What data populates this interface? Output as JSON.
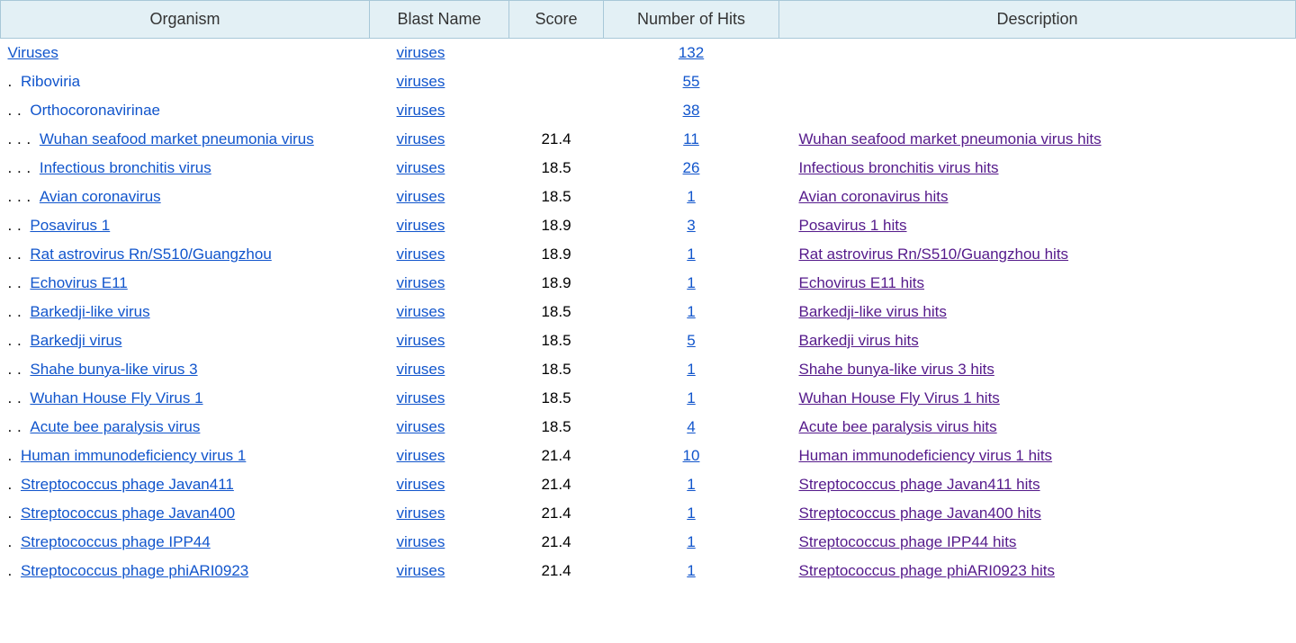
{
  "columns": {
    "organism": "Organism",
    "blast": "Blast Name",
    "score": "Score",
    "hits": "Number of Hits",
    "desc": "Description"
  },
  "colors": {
    "header_bg": "#e3f0f5",
    "border": "#a8c8d8",
    "link_blue": "#1155cc",
    "link_purple": "#551a8b"
  },
  "rows": [
    {
      "indent": 0,
      "organism": "Viruses",
      "org_is_link": true,
      "blast": "viruses",
      "score": "",
      "hits": "132",
      "desc": ""
    },
    {
      "indent": 1,
      "organism": "Riboviria",
      "org_is_link": false,
      "blast": "viruses",
      "score": "",
      "hits": "55",
      "desc": ""
    },
    {
      "indent": 2,
      "organism": "Orthocoronavirinae",
      "org_is_link": false,
      "blast": "viruses",
      "score": "",
      "hits": "38",
      "desc": ""
    },
    {
      "indent": 3,
      "organism": "Wuhan seafood market pneumonia virus",
      "org_is_link": true,
      "blast": "viruses",
      "score": "21.4",
      "hits": "11",
      "desc": "Wuhan seafood market pneumonia virus hits"
    },
    {
      "indent": 3,
      "organism": "Infectious bronchitis virus",
      "org_is_link": true,
      "blast": "viruses",
      "score": "18.5",
      "hits": "26",
      "desc": "Infectious bronchitis virus hits"
    },
    {
      "indent": 3,
      "organism": "Avian coronavirus",
      "org_is_link": true,
      "blast": "viruses",
      "score": "18.5",
      "hits": "1",
      "desc": "Avian coronavirus hits"
    },
    {
      "indent": 2,
      "organism": "Posavirus 1",
      "org_is_link": true,
      "blast": "viruses",
      "score": "18.9",
      "hits": "3",
      "desc": "Posavirus 1 hits"
    },
    {
      "indent": 2,
      "organism": "Rat astrovirus Rn/S510/Guangzhou",
      "org_is_link": true,
      "blast": "viruses",
      "score": "18.9",
      "hits": "1",
      "desc": "Rat astrovirus Rn/S510/Guangzhou hits"
    },
    {
      "indent": 2,
      "organism": "Echovirus E11",
      "org_is_link": true,
      "blast": "viruses",
      "score": "18.9",
      "hits": "1",
      "desc": "Echovirus E11 hits"
    },
    {
      "indent": 2,
      "organism": "Barkedji-like virus",
      "org_is_link": true,
      "blast": "viruses",
      "score": "18.5",
      "hits": "1",
      "desc": "Barkedji-like virus hits"
    },
    {
      "indent": 2,
      "organism": "Barkedji virus",
      "org_is_link": true,
      "blast": "viruses",
      "score": "18.5",
      "hits": "5",
      "desc": "Barkedji virus hits"
    },
    {
      "indent": 2,
      "organism": "Shahe bunya-like virus 3",
      "org_is_link": true,
      "blast": "viruses",
      "score": "18.5",
      "hits": "1",
      "desc": "Shahe bunya-like virus 3 hits"
    },
    {
      "indent": 2,
      "organism": "Wuhan House Fly Virus 1",
      "org_is_link": true,
      "blast": "viruses",
      "score": "18.5",
      "hits": "1",
      "desc": "Wuhan House Fly Virus 1 hits"
    },
    {
      "indent": 2,
      "organism": "Acute bee paralysis virus",
      "org_is_link": true,
      "blast": "viruses",
      "score": "18.5",
      "hits": "4",
      "desc": "Acute bee paralysis virus hits"
    },
    {
      "indent": 1,
      "organism": "Human immunodeficiency virus 1",
      "org_is_link": true,
      "blast": "viruses",
      "score": "21.4",
      "hits": "10",
      "desc": "Human immunodeficiency virus 1 hits"
    },
    {
      "indent": 1,
      "organism": "Streptococcus phage Javan411",
      "org_is_link": true,
      "blast": "viruses",
      "score": "21.4",
      "hits": "1",
      "desc": "Streptococcus phage Javan411 hits"
    },
    {
      "indent": 1,
      "organism": "Streptococcus phage Javan400",
      "org_is_link": true,
      "blast": "viruses",
      "score": "21.4",
      "hits": "1",
      "desc": "Streptococcus phage Javan400 hits"
    },
    {
      "indent": 1,
      "organism": "Streptococcus phage IPP44",
      "org_is_link": true,
      "blast": "viruses",
      "score": "21.4",
      "hits": "1",
      "desc": "Streptococcus phage IPP44 hits"
    },
    {
      "indent": 1,
      "organism": "Streptococcus phage phiARI0923",
      "org_is_link": true,
      "blast": "viruses",
      "score": "21.4",
      "hits": "1",
      "desc": "Streptococcus phage phiARI0923 hits"
    }
  ]
}
